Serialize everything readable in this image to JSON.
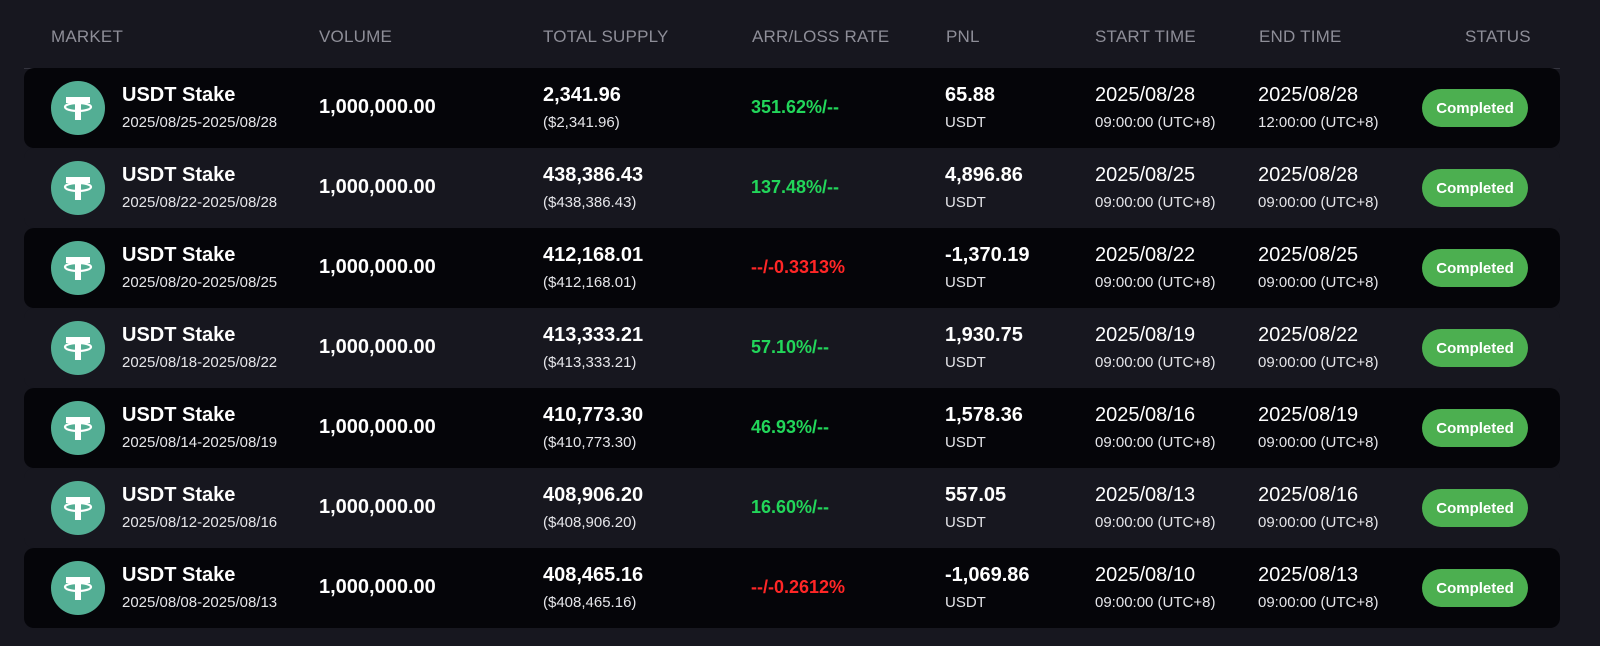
{
  "colors": {
    "background": "#17171f",
    "row_alt": "#050509",
    "positive": "#22d65a",
    "negative": "#ff2626",
    "badge": "#4caf50",
    "token": "#53ae94"
  },
  "header": {
    "market": "MARKET",
    "volume": "VOLUME",
    "total_supply": "TOTAL SUPPLY",
    "rate": "ARR/LOSS RATE",
    "pnl": "PNL",
    "start_time": "START TIME",
    "end_time": "END TIME",
    "status": "STATUS"
  },
  "rows": [
    {
      "icon": "tether-icon",
      "market": "USDT Stake",
      "range": "2025/08/25-2025/08/28",
      "volume": "1,000,000.00",
      "supply": "2,341.96",
      "supply_usd": "($2,341.96)",
      "rate": "351.62%/--",
      "rate_sign": "positive",
      "pnl": "65.88",
      "pnl_unit": "USDT",
      "start_date": "2025/08/28",
      "start_time": "09:00:00 (UTC+8)",
      "end_date": "2025/08/28",
      "end_time": "12:00:00 (UTC+8)",
      "status": "Completed"
    },
    {
      "icon": "tether-icon",
      "market": "USDT Stake",
      "range": "2025/08/22-2025/08/28",
      "volume": "1,000,000.00",
      "supply": "438,386.43",
      "supply_usd": "($438,386.43)",
      "rate": "137.48%/--",
      "rate_sign": "positive",
      "pnl": "4,896.86",
      "pnl_unit": "USDT",
      "start_date": "2025/08/25",
      "start_time": "09:00:00 (UTC+8)",
      "end_date": "2025/08/28",
      "end_time": "09:00:00 (UTC+8)",
      "status": "Completed"
    },
    {
      "icon": "tether-icon",
      "market": "USDT Stake",
      "range": "2025/08/20-2025/08/25",
      "volume": "1,000,000.00",
      "supply": "412,168.01",
      "supply_usd": "($412,168.01)",
      "rate": "--/-0.3313%",
      "rate_sign": "negative",
      "pnl": "-1,370.19",
      "pnl_unit": "USDT",
      "start_date": "2025/08/22",
      "start_time": "09:00:00 (UTC+8)",
      "end_date": "2025/08/25",
      "end_time": "09:00:00 (UTC+8)",
      "status": "Completed"
    },
    {
      "icon": "tether-icon",
      "market": "USDT Stake",
      "range": "2025/08/18-2025/08/22",
      "volume": "1,000,000.00",
      "supply": "413,333.21",
      "supply_usd": "($413,333.21)",
      "rate": "57.10%/--",
      "rate_sign": "positive",
      "pnl": "1,930.75",
      "pnl_unit": "USDT",
      "start_date": "2025/08/19",
      "start_time": "09:00:00 (UTC+8)",
      "end_date": "2025/08/22",
      "end_time": "09:00:00 (UTC+8)",
      "status": "Completed"
    },
    {
      "icon": "tether-icon",
      "market": "USDT Stake",
      "range": "2025/08/14-2025/08/19",
      "volume": "1,000,000.00",
      "supply": "410,773.30",
      "supply_usd": "($410,773.30)",
      "rate": "46.93%/--",
      "rate_sign": "positive",
      "pnl": "1,578.36",
      "pnl_unit": "USDT",
      "start_date": "2025/08/16",
      "start_time": "09:00:00 (UTC+8)",
      "end_date": "2025/08/19",
      "end_time": "09:00:00 (UTC+8)",
      "status": "Completed"
    },
    {
      "icon": "tether-icon",
      "market": "USDT Stake",
      "range": "2025/08/12-2025/08/16",
      "volume": "1,000,000.00",
      "supply": "408,906.20",
      "supply_usd": "($408,906.20)",
      "rate": "16.60%/--",
      "rate_sign": "positive",
      "pnl": "557.05",
      "pnl_unit": "USDT",
      "start_date": "2025/08/13",
      "start_time": "09:00:00 (UTC+8)",
      "end_date": "2025/08/16",
      "end_time": "09:00:00 (UTC+8)",
      "status": "Completed"
    },
    {
      "icon": "tether-icon",
      "market": "USDT Stake",
      "range": "2025/08/08-2025/08/13",
      "volume": "1,000,000.00",
      "supply": "408,465.16",
      "supply_usd": "($408,465.16)",
      "rate": "--/-0.2612%",
      "rate_sign": "negative",
      "pnl": "-1,069.86",
      "pnl_unit": "USDT",
      "start_date": "2025/08/10",
      "start_time": "09:00:00 (UTC+8)",
      "end_date": "2025/08/13",
      "end_time": "09:00:00 (UTC+8)",
      "status": "Completed"
    }
  ]
}
